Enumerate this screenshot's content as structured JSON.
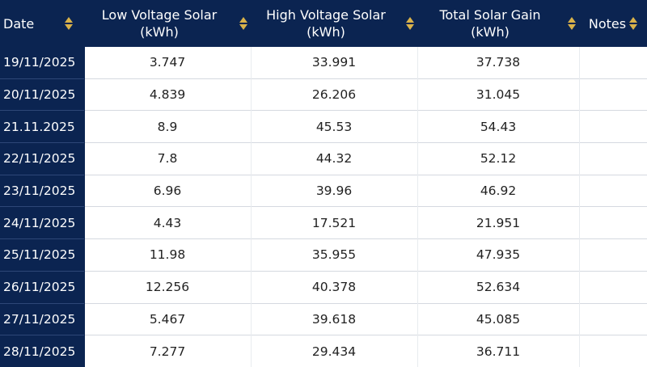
{
  "table": {
    "columns": [
      {
        "label": "Date",
        "sort_icon": "sort-arrows-icon"
      },
      {
        "label": "Low Voltage Solar (kWh)",
        "sort_icon": "sort-arrows-icon"
      },
      {
        "label": "High Voltage Solar (kWh)",
        "sort_icon": "sort-arrows-icon"
      },
      {
        "label": "Total Solar Gain (kWh)",
        "sort_icon": "sort-arrows-icon"
      },
      {
        "label": "Notes",
        "sort_icon": "sort-arrows-icon"
      }
    ],
    "rows": [
      {
        "date": "19/11/2025",
        "low": "3.747",
        "high": "33.991",
        "total": "37.738",
        "notes": ""
      },
      {
        "date": "20/11/2025",
        "low": "4.839",
        "high": "26.206",
        "total": "31.045",
        "notes": ""
      },
      {
        "date": "21.11.2025",
        "low": "8.9",
        "high": "45.53",
        "total": "54.43",
        "notes": ""
      },
      {
        "date": "22/11/2025",
        "low": "7.8",
        "high": "44.32",
        "total": "52.12",
        "notes": ""
      },
      {
        "date": "23/11/2025",
        "low": "6.96",
        "high": "39.96",
        "total": "46.92",
        "notes": ""
      },
      {
        "date": "24/11/2025",
        "low": "4.43",
        "high": "17.521",
        "total": "21.951",
        "notes": ""
      },
      {
        "date": "25/11/2025",
        "low": "11.98",
        "high": "35.955",
        "total": "47.935",
        "notes": ""
      },
      {
        "date": "26/11/2025",
        "low": "12.256",
        "high": "40.378",
        "total": "52.634",
        "notes": ""
      },
      {
        "date": "27/11/2025",
        "low": "5.467",
        "high": "39.618",
        "total": "45.085",
        "notes": ""
      },
      {
        "date": "28/11/2025",
        "low": "7.277",
        "high": "29.434",
        "total": "36.711",
        "notes": ""
      }
    ]
  },
  "colors": {
    "header_bg": "#0b2451",
    "header_text": "#ffffff",
    "sort_icon": "#d9b24a",
    "row_border": "#d5d9e0"
  }
}
